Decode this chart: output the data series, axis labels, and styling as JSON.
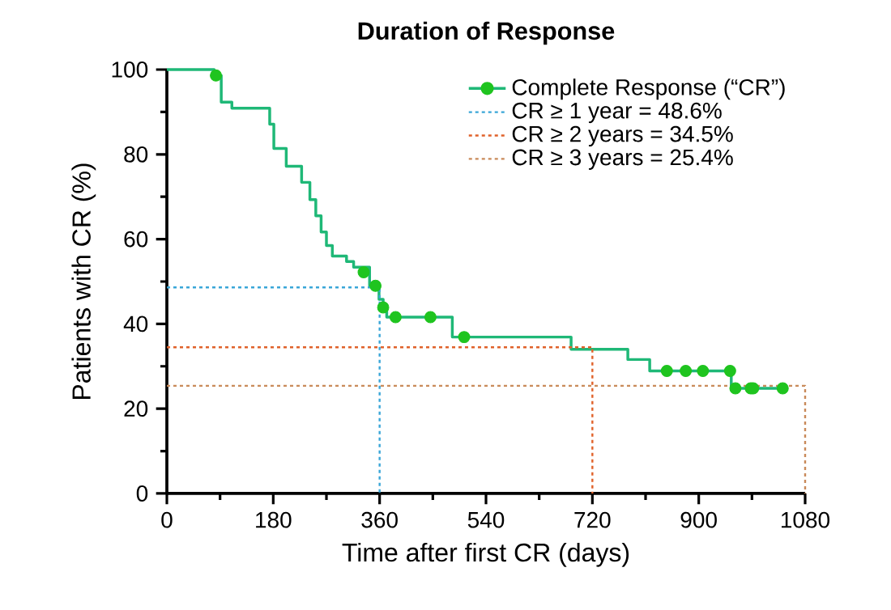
{
  "chart_data": {
    "type": "step",
    "title": "Duration of Response",
    "xlabel": "Time after first CR (days)",
    "ylabel": "Patients with CR (%)",
    "xlim": [
      0,
      1080
    ],
    "xticks": [
      0,
      180,
      360,
      540,
      720,
      900,
      1080
    ],
    "ylim": [
      0,
      100
    ],
    "yticks": [
      0,
      20,
      40,
      60,
      80,
      100
    ],
    "grid": false,
    "legend": "top right",
    "series": [
      {
        "name": "Complete Response (“CR”)",
        "color": "#1fb877",
        "marker": "none",
        "x": [
          0,
          80,
          92,
          110,
          174,
          181,
          202,
          228,
          242,
          252,
          261,
          270,
          280,
          304,
          316,
          343,
          359,
          366,
          372,
          483,
          684,
          780,
          817,
          955,
          1042
        ],
        "values": [
          100,
          98.6,
          92.3,
          90.9,
          87.1,
          81.4,
          77.2,
          73.4,
          69.3,
          65.5,
          61.7,
          58.5,
          56,
          54.7,
          53.4,
          49,
          45.8,
          43.9,
          41.6,
          36.9,
          34.0,
          31.6,
          28.9,
          24.8,
          24.8
        ]
      },
      {
        "type": "scatter",
        "color": "#1fc41f",
        "marker": "circle",
        "x": [
          83,
          333,
          353,
          366,
          387,
          446,
          503,
          846,
          878,
          907,
          953,
          962,
          988,
          992,
          1042
        ],
        "values": [
          98.6,
          52.2,
          49,
          43.9,
          41.6,
          41.6,
          36.9,
          28.9,
          28.9,
          28.9,
          28.9,
          24.8,
          24.8,
          24.8,
          24.8
        ]
      },
      {
        "name": "CR ≥ 1 year = 48.6%",
        "type": "line",
        "color": "#3aa6d8",
        "line_style": "dotted",
        "x": [
          0,
          360,
          360
        ],
        "values": [
          48.6,
          48.6,
          0
        ]
      },
      {
        "name": "CR ≥ 2 years = 34.5%",
        "type": "line",
        "color": "#e0622a",
        "line_style": "dotted",
        "x": [
          0,
          720,
          720
        ],
        "values": [
          34.5,
          34.5,
          0
        ]
      },
      {
        "name": "CR ≥ 3 years = 25.4%",
        "type": "line",
        "color": "#c98a5a",
        "line_style": "dotted",
        "x": [
          0,
          1080,
          1080
        ],
        "values": [
          25.4,
          25.4,
          0
        ]
      }
    ]
  }
}
